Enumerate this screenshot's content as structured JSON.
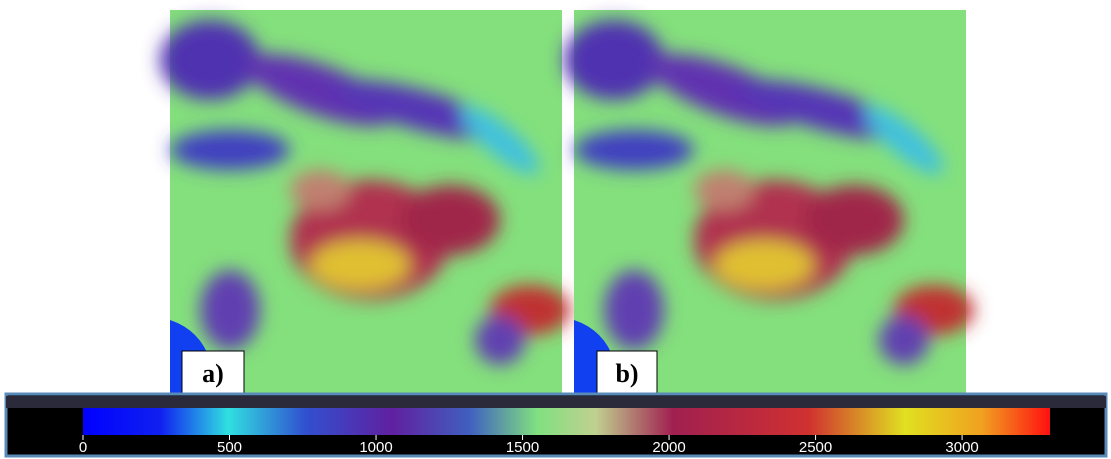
{
  "panels": [
    {
      "label": "a)"
    },
    {
      "label": "b)"
    }
  ],
  "colorbar": {
    "lim": [
      0,
      3300
    ],
    "ticks": [
      0,
      500,
      1000,
      1500,
      2000,
      2500,
      3000
    ]
  }
}
